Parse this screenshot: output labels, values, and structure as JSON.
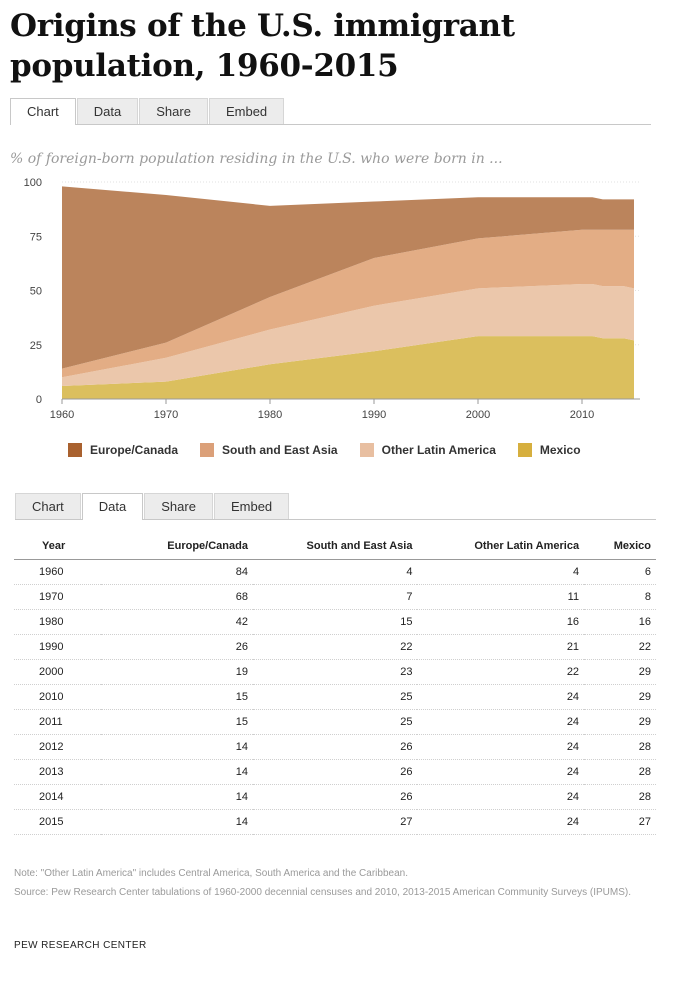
{
  "title": "Origins of the U.S. immigrant population, 1960-2015",
  "tabs_top": [
    "Chart",
    "Data",
    "Share",
    "Embed"
  ],
  "tabs_bottom": [
    "Chart",
    "Data",
    "Share",
    "Embed"
  ],
  "subtitle": "% of foreign-born population residing in the U.S. who were born in ...",
  "chart_data": {
    "type": "area",
    "stacked": true,
    "x": [
      1960,
      1970,
      1980,
      1990,
      2000,
      2010,
      2011,
      2012,
      2013,
      2014,
      2015
    ],
    "series": [
      {
        "name": "Mexico",
        "values": [
          6,
          8,
          16,
          22,
          29,
          29,
          29,
          28,
          28,
          28,
          27
        ],
        "color": "#dbbf5e"
      },
      {
        "name": "Other Latin America",
        "values": [
          4,
          11,
          16,
          21,
          22,
          24,
          24,
          24,
          24,
          24,
          24
        ],
        "color": "#ebc7ab"
      },
      {
        "name": "South and East Asia",
        "values": [
          4,
          7,
          15,
          22,
          23,
          25,
          25,
          26,
          26,
          26,
          27
        ],
        "color": "#e3ad85"
      },
      {
        "name": "Europe/Canada",
        "values": [
          84,
          68,
          42,
          26,
          19,
          15,
          15,
          14,
          14,
          14,
          14
        ],
        "color": "#bb845c"
      }
    ],
    "ylim": [
      0,
      100
    ],
    "yticks": [
      0,
      25,
      50,
      75,
      100
    ],
    "xticks": [
      1960,
      1970,
      1980,
      1990,
      2000,
      2010
    ],
    "grid": true
  },
  "legend": [
    {
      "label": "Europe/Canada",
      "color": "#a9612f"
    },
    {
      "label": "South and East Asia",
      "color": "#dba079"
    },
    {
      "label": "Other Latin America",
      "color": "#e8bfa1"
    },
    {
      "label": "Mexico",
      "color": "#d6af3e"
    }
  ],
  "table": {
    "headers": [
      "Year",
      "Europe/Canada",
      "South and East Asia",
      "Other Latin America",
      "Mexico"
    ],
    "rows": [
      [
        "1960",
        "84",
        "4",
        "4",
        "6"
      ],
      [
        "1970",
        "68",
        "7",
        "11",
        "8"
      ],
      [
        "1980",
        "42",
        "15",
        "16",
        "16"
      ],
      [
        "1990",
        "26",
        "22",
        "21",
        "22"
      ],
      [
        "2000",
        "19",
        "23",
        "22",
        "29"
      ],
      [
        "2010",
        "15",
        "25",
        "24",
        "29"
      ],
      [
        "2011",
        "15",
        "25",
        "24",
        "29"
      ],
      [
        "2012",
        "14",
        "26",
        "24",
        "28"
      ],
      [
        "2013",
        "14",
        "26",
        "24",
        "28"
      ],
      [
        "2014",
        "14",
        "26",
        "24",
        "28"
      ],
      [
        "2015",
        "14",
        "27",
        "24",
        "27"
      ]
    ]
  },
  "note": "Note: \"Other Latin America\" includes Central America, South America and the Caribbean.",
  "source": "Source: Pew Research Center tabulations of 1960-2000 decennial censuses and 2010, 2013-2015 American Community Surveys (IPUMS).",
  "brand": "PEW RESEARCH CENTER"
}
